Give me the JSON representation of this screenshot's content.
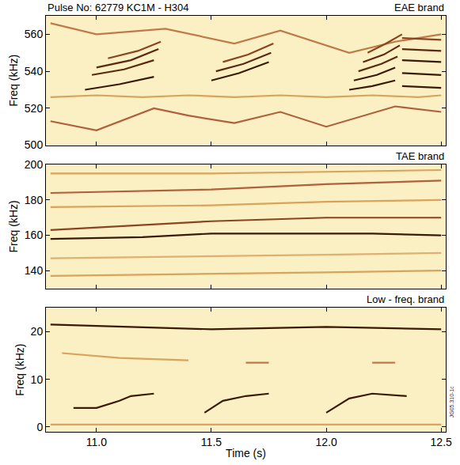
{
  "chart_data": [
    {
      "type": "line",
      "title": "EAE brand",
      "annotations": [
        "Pulse No: 62779 KC1M - H304"
      ],
      "ylabel": "Freq (kHz)",
      "xlim": [
        10.78,
        12.52
      ],
      "xticks": [
        {
          "value": 11,
          "label": "11.0"
        },
        11.5,
        {
          "value": 12,
          "label": "12.0"
        },
        12.5
      ],
      "ylim": [
        500,
        570
      ],
      "yticks": [
        500,
        520,
        540,
        560
      ],
      "tick_labels": "y",
      "series": [
        {
          "color": "#d9a35a",
          "x": [
            10.8,
            11.0,
            11.2,
            11.4,
            11.6,
            11.8,
            12.0,
            12.2,
            12.4,
            12.5
          ],
          "values": [
            526,
            527,
            526,
            527,
            526,
            527,
            526,
            527,
            526,
            527
          ]
        },
        {
          "color": "#b0603a",
          "x": [
            10.8,
            11.0,
            11.25,
            11.4,
            11.6,
            11.8,
            12.0,
            12.3,
            12.5
          ],
          "values": [
            513,
            508,
            520,
            516,
            512,
            518,
            510,
            521,
            518
          ]
        },
        {
          "color": "#c07a48",
          "x": [
            10.8,
            11.0,
            11.3,
            11.6,
            11.8,
            12.1,
            12.3,
            12.5
          ],
          "values": [
            566,
            560,
            563,
            555,
            562,
            550,
            556,
            560
          ]
        },
        {
          "color": "#3a1a08",
          "x": [
            10.95,
            11.1,
            11.25
          ],
          "values": [
            530,
            533,
            537
          ]
        },
        {
          "color": "#5a2a10",
          "x": [
            10.98,
            11.12,
            11.25
          ],
          "values": [
            538,
            541,
            546
          ]
        },
        {
          "color": "#5a2a10",
          "x": [
            11.0,
            11.15,
            11.27
          ],
          "values": [
            542,
            546,
            552
          ]
        },
        {
          "color": "#8a4420",
          "x": [
            11.05,
            11.18,
            11.28
          ],
          "values": [
            547,
            551,
            556
          ]
        },
        {
          "color": "#3a1a08",
          "x": [
            11.5,
            11.62,
            11.75
          ],
          "values": [
            535,
            539,
            545
          ]
        },
        {
          "color": "#5a2a10",
          "x": [
            11.52,
            11.64,
            11.76
          ],
          "values": [
            540,
            544,
            550
          ]
        },
        {
          "color": "#8a4420",
          "x": [
            11.55,
            11.66,
            11.77
          ],
          "values": [
            545,
            549,
            555
          ]
        },
        {
          "color": "#3a1a08",
          "x": [
            12.1,
            12.2,
            12.3
          ],
          "values": [
            530,
            532,
            535
          ]
        },
        {
          "color": "#3a1a08",
          "x": [
            12.12,
            12.22,
            12.3
          ],
          "values": [
            535,
            538,
            542
          ]
        },
        {
          "color": "#5a2a10",
          "x": [
            12.14,
            12.24,
            12.31
          ],
          "values": [
            540,
            544,
            548
          ]
        },
        {
          "color": "#5a2a10",
          "x": [
            12.16,
            12.25,
            12.32
          ],
          "values": [
            545,
            549,
            554
          ]
        },
        {
          "color": "#8a4420",
          "x": [
            12.18,
            12.26,
            12.33
          ],
          "values": [
            550,
            555,
            560
          ]
        },
        {
          "color": "#3a1a08",
          "x": [
            12.33,
            12.5
          ],
          "values": [
            532,
            531
          ]
        },
        {
          "color": "#3a1a08",
          "x": [
            12.33,
            12.5
          ],
          "values": [
            539,
            538
          ]
        },
        {
          "color": "#3a1a08",
          "x": [
            12.33,
            12.5
          ],
          "values": [
            546,
            545
          ]
        },
        {
          "color": "#5a2a10",
          "x": [
            12.33,
            12.5
          ],
          "values": [
            552,
            551
          ]
        },
        {
          "color": "#8a4420",
          "x": [
            12.33,
            12.5
          ],
          "values": [
            558,
            557
          ]
        }
      ]
    },
    {
      "type": "line",
      "title": "TAE brand",
      "ylabel": "Freq (kHz)",
      "xlim": [
        10.78,
        12.52
      ],
      "xticks": [
        {
          "value": 11,
          "label": "11.0"
        },
        11.5,
        {
          "value": 12,
          "label": "12.0"
        },
        12.5
      ],
      "ylim": [
        130,
        200
      ],
      "yticks": [
        140,
        160,
        180,
        200
      ],
      "tick_labels": "y",
      "series": [
        {
          "color": "#3a1a08",
          "x": [
            10.8,
            11.2,
            11.5,
            12.0,
            12.2,
            12.5
          ],
          "values": [
            158,
            159,
            161,
            161,
            161,
            160
          ]
        },
        {
          "color": "#8a4420",
          "x": [
            10.8,
            11.2,
            11.5,
            12.0,
            12.5
          ],
          "values": [
            163,
            166,
            168,
            170,
            170
          ]
        },
        {
          "color": "#b0603a",
          "x": [
            10.8,
            11.5,
            12.0,
            12.5
          ],
          "values": [
            184,
            186,
            189,
            191
          ]
        },
        {
          "color": "#d9a35a",
          "x": [
            10.8,
            11.5,
            12.0,
            12.5
          ],
          "values": [
            176,
            177,
            179,
            180
          ]
        },
        {
          "color": "#d9a35a",
          "x": [
            10.8,
            11.5,
            12.0,
            12.5
          ],
          "values": [
            137,
            138,
            139,
            140
          ]
        },
        {
          "color": "#e0b070",
          "x": [
            10.8,
            11.5,
            12.0,
            12.5
          ],
          "values": [
            147,
            148,
            149,
            150
          ]
        },
        {
          "color": "#d9a35a",
          "x": [
            10.8,
            11.5,
            12.0,
            12.5
          ],
          "values": [
            195,
            195,
            196,
            197
          ]
        }
      ]
    },
    {
      "type": "line",
      "title": "Low - freq. brand",
      "annotations": [
        "JG05.310-1c"
      ],
      "ylabel": "Freq (kHz)",
      "xlabel": "Time (s)",
      "xlim": [
        10.78,
        12.52
      ],
      "xticks": [
        {
          "value": 11,
          "label": "11.0"
        },
        11.5,
        {
          "value": 12,
          "label": "12.0"
        },
        12.5
      ],
      "ylim": [
        -1,
        25
      ],
      "yticks": [
        0,
        10,
        20
      ],
      "series": [
        {
          "color": "#3a1a08",
          "x": [
            10.8,
            11.2,
            11.5,
            12.0,
            12.5
          ],
          "values": [
            21.5,
            21,
            20.5,
            21,
            20.5
          ]
        },
        {
          "color": "#3a1a08",
          "x": [
            10.9,
            11.0,
            11.1,
            11.15,
            11.25
          ],
          "values": [
            4,
            4,
            5.5,
            6.5,
            7
          ]
        },
        {
          "color": "#3a1a08",
          "x": [
            11.47,
            11.55,
            11.65,
            11.75
          ],
          "values": [
            3,
            5.5,
            6.5,
            7
          ]
        },
        {
          "color": "#3a1a08",
          "x": [
            12.0,
            12.1,
            12.2,
            12.35
          ],
          "values": [
            3,
            6,
            7,
            6.5
          ]
        },
        {
          "color": "#d9a35a",
          "x": [
            10.85,
            11.1,
            11.4
          ],
          "values": [
            15.5,
            14.5,
            14
          ]
        },
        {
          "color": "#c07a48",
          "x": [
            11.65,
            11.75
          ],
          "values": [
            13.5,
            13.5
          ]
        },
        {
          "color": "#c07a48",
          "x": [
            12.2,
            12.3
          ],
          "values": [
            13.5,
            13.5
          ]
        },
        {
          "color": "#e0a060",
          "x": [
            10.8,
            11.5,
            12.0,
            12.5
          ],
          "values": [
            0.5,
            0.5,
            0.5,
            0.5
          ]
        }
      ]
    }
  ]
}
